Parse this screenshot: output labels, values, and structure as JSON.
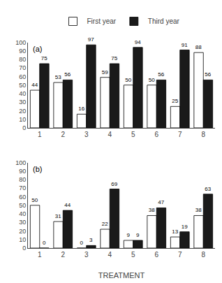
{
  "chart_data": [
    {
      "type": "bar",
      "annotations": [
        "(a)"
      ],
      "categories": [
        "1",
        "2",
        "3",
        "4",
        "5",
        "6",
        "7",
        "8"
      ],
      "series": [
        {
          "name": "First year",
          "color": "#ffffff",
          "values": [
            44,
            53,
            16,
            59,
            50,
            50,
            25,
            88
          ]
        },
        {
          "name": "Third year",
          "color": "#1a1a1a",
          "values": [
            75,
            56,
            97,
            75,
            94,
            56,
            91,
            56
          ]
        }
      ],
      "ylim": [
        0,
        100
      ],
      "yticks": [
        0,
        10,
        20,
        30,
        40,
        50,
        60,
        70,
        80,
        90,
        100
      ],
      "grid": false,
      "data_labels": true,
      "legend": "top"
    },
    {
      "type": "bar",
      "annotations": [
        "(b)"
      ],
      "xlabel": "TREATMENT",
      "categories": [
        "1",
        "2",
        "3",
        "4",
        "5",
        "6",
        "7",
        "8"
      ],
      "series": [
        {
          "name": "First year",
          "color": "#ffffff",
          "values": [
            50,
            31,
            0,
            22,
            9,
            38,
            13,
            38
          ]
        },
        {
          "name": "Third year",
          "color": "#1a1a1a",
          "values": [
            0,
            44,
            3,
            69,
            9,
            47,
            19,
            63
          ]
        }
      ],
      "ylim": [
        0,
        100
      ],
      "yticks": [
        0,
        10,
        20,
        30,
        40,
        50,
        60,
        70,
        80,
        90,
        100
      ],
      "grid": false,
      "data_labels": true
    }
  ]
}
